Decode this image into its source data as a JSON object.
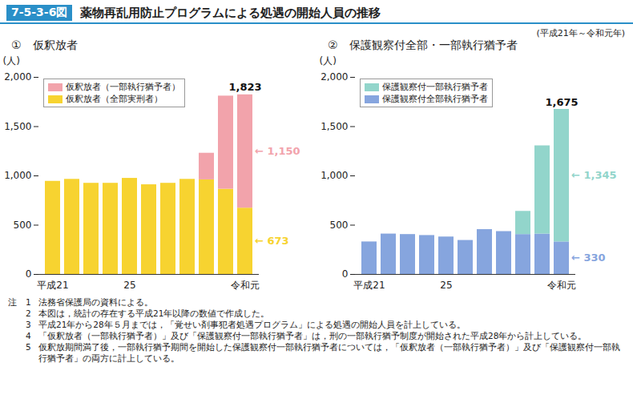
{
  "figure_id": "7-5-3-6図",
  "title": "薬物再乱用防止プログラムによる処遇の開始人員の推移",
  "subtitle": "(平成21年～令和元年)",
  "notes_label": "注",
  "notes": [
    "法務省保護局の資料による。",
    "本図は，統計の存在する平成21年以降の数値で作成した。",
    "平成21年から28年５月までは，「覚せい剤事犯者処遇プログラム」による処遇の開始人員を計上している。",
    "「仮釈放者（一部執行猶予者）」及び「保護観察付一部執行猶予者」は，刑の一部執行猶予制度が開始された平成28年から計上している。",
    "仮釈放期間満了後，一部執行猶予期間を開始した保護観察付一部執行猶予者については，「仮釈放者（一部執行猶予者）」及び「保護観察付一部執行猶予者」の両方に計上している。"
  ],
  "chart_data": [
    {
      "type": "bar",
      "stacked": true,
      "title": "①　仮釈放者",
      "ylabel": "(人)",
      "categories": [
        "平成21",
        null,
        null,
        null,
        "25",
        null,
        null,
        null,
        null,
        null,
        "令和元"
      ],
      "ylim": [
        0,
        2000
      ],
      "yticks": [
        0,
        500,
        {
          "value": 1000,
          "label": "1,000"
        },
        {
          "value": 1500,
          "label": "1,500"
        },
        {
          "value": 2000,
          "label": "2,000"
        }
      ],
      "legend": "top-left",
      "series": [
        {
          "name": "仮釈放者（全部実刑者）",
          "color": "#f7d330",
          "values": [
            945,
            965,
            925,
            925,
            975,
            910,
            925,
            965,
            960,
            865,
            673
          ],
          "value_labels": [
            null,
            null,
            null,
            null,
            null,
            null,
            null,
            null,
            null,
            null,
            "673"
          ]
        },
        {
          "name": "仮釈放者（一部執行猶予者）",
          "color": "#f2a3ab",
          "values": [
            null,
            null,
            null,
            null,
            null,
            null,
            null,
            null,
            270,
            945,
            1150
          ],
          "value_labels": [
            null,
            null,
            null,
            null,
            null,
            null,
            null,
            null,
            null,
            null,
            "1,150"
          ]
        }
      ],
      "total_labels": [
        null,
        null,
        null,
        null,
        null,
        null,
        null,
        null,
        null,
        null,
        {
          "value": 1823,
          "label": "1,823"
        }
      ]
    },
    {
      "type": "bar",
      "stacked": true,
      "title": "②　保護観察付全部・一部執行猶予者",
      "ylabel": "(人)",
      "categories": [
        "平成21",
        null,
        null,
        null,
        "25",
        null,
        null,
        null,
        null,
        null,
        "令和元"
      ],
      "ylim": [
        0,
        2000
      ],
      "yticks": [
        0,
        500,
        {
          "value": 1000,
          "label": "1,000"
        },
        {
          "value": 1500,
          "label": "1,500"
        },
        {
          "value": 2000,
          "label": "2,000"
        }
      ],
      "legend": "top-left",
      "series": [
        {
          "name": "保護観察付全部執行猶予者",
          "color": "#86a5de",
          "values": [
            330,
            410,
            405,
            395,
            380,
            345,
            455,
            435,
            405,
            410,
            330
          ],
          "value_labels": [
            null,
            null,
            null,
            null,
            null,
            null,
            null,
            null,
            null,
            null,
            "330"
          ]
        },
        {
          "name": "保護観察付一部執行猶予者",
          "color": "#92d5cb",
          "values": [
            null,
            null,
            null,
            null,
            null,
            null,
            null,
            null,
            235,
            895,
            1345
          ],
          "value_labels": [
            null,
            null,
            null,
            null,
            null,
            null,
            null,
            null,
            null,
            null,
            "1,345"
          ]
        }
      ],
      "total_labels": [
        null,
        null,
        null,
        null,
        null,
        null,
        null,
        null,
        null,
        null,
        {
          "value": 1675,
          "label": "1,675"
        }
      ]
    }
  ]
}
